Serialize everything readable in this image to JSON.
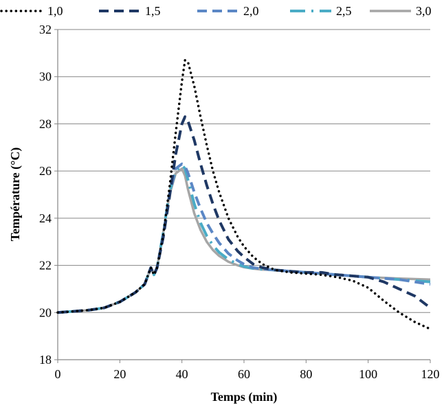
{
  "chart_data": {
    "type": "line",
    "xlabel": "Temps (min)",
    "ylabel": "Température (°C)",
    "xlim": [
      0,
      120
    ],
    "ylim": [
      18,
      32
    ],
    "xticks": [
      0,
      20,
      40,
      60,
      80,
      100,
      120
    ],
    "yticks": [
      18,
      20,
      22,
      24,
      26,
      28,
      30,
      32
    ],
    "grid": "horizontal",
    "legend_position": "top",
    "series": [
      {
        "name": "1,0",
        "color": "#000000",
        "style": "dotted",
        "x": [
          0,
          5,
          10,
          15,
          20,
          25,
          28,
          30,
          31,
          32,
          34,
          36,
          38,
          40,
          41,
          42,
          44,
          46,
          48,
          50,
          52,
          55,
          58,
          60,
          63,
          66,
          70,
          75,
          80,
          85,
          90,
          95,
          100,
          105,
          110,
          115,
          120
        ],
        "y": [
          20.0,
          20.05,
          20.1,
          20.2,
          20.45,
          20.85,
          21.2,
          21.9,
          21.6,
          21.9,
          23.3,
          25.3,
          27.6,
          29.8,
          30.7,
          30.6,
          29.6,
          28.3,
          27.1,
          26.0,
          25.1,
          24.0,
          23.2,
          22.8,
          22.35,
          22.05,
          21.8,
          21.7,
          21.65,
          21.6,
          21.5,
          21.35,
          21.05,
          20.5,
          20.0,
          19.6,
          19.3
        ]
      },
      {
        "name": "1,5",
        "color": "#1f3864",
        "style": "dashed",
        "x": [
          0,
          5,
          10,
          15,
          20,
          25,
          28,
          30,
          31,
          32,
          34,
          36,
          38,
          40,
          41,
          42,
          44,
          46,
          48,
          50,
          52,
          55,
          58,
          60,
          63,
          66,
          70,
          75,
          80,
          85,
          90,
          95,
          100,
          105,
          110,
          115,
          120
        ],
        "y": [
          20.0,
          20.05,
          20.1,
          20.2,
          20.45,
          20.85,
          21.2,
          21.9,
          21.6,
          21.9,
          23.2,
          24.9,
          26.7,
          28.0,
          28.3,
          28.1,
          27.3,
          26.3,
          25.4,
          24.6,
          23.9,
          23.1,
          22.6,
          22.35,
          22.05,
          21.9,
          21.8,
          21.75,
          21.7,
          21.7,
          21.6,
          21.55,
          21.5,
          21.3,
          21.0,
          20.7,
          20.2
        ]
      },
      {
        "name": "2,0",
        "color": "#5b87c5",
        "style": "dashed",
        "x": [
          0,
          5,
          10,
          15,
          20,
          25,
          28,
          30,
          31,
          32,
          34,
          36,
          38,
          40,
          41,
          42,
          44,
          46,
          48,
          50,
          52,
          55,
          58,
          60,
          63,
          66,
          70,
          75,
          80,
          85,
          90,
          95,
          100,
          105,
          110,
          115,
          120
        ],
        "y": [
          20.0,
          20.05,
          20.1,
          20.2,
          20.45,
          20.85,
          21.2,
          21.9,
          21.6,
          21.9,
          23.3,
          25.0,
          26.1,
          26.3,
          26.2,
          25.9,
          25.1,
          24.4,
          23.8,
          23.35,
          22.95,
          22.5,
          22.2,
          22.05,
          21.9,
          21.85,
          21.8,
          21.75,
          21.7,
          21.65,
          21.6,
          21.55,
          21.5,
          21.45,
          21.4,
          21.3,
          21.2
        ]
      },
      {
        "name": "2,5",
        "color": "#4bacc6",
        "style": "dashdot",
        "x": [
          0,
          5,
          10,
          15,
          20,
          25,
          28,
          30,
          31,
          32,
          34,
          36,
          38,
          40,
          41,
          42,
          44,
          46,
          48,
          50,
          52,
          55,
          58,
          60,
          63,
          66,
          70,
          75,
          80,
          85,
          90,
          95,
          100,
          105,
          110,
          115,
          120
        ],
        "y": [
          20.0,
          20.05,
          20.1,
          20.2,
          20.45,
          20.85,
          21.2,
          21.9,
          21.6,
          21.9,
          23.4,
          25.1,
          26.0,
          26.25,
          26.1,
          25.6,
          24.6,
          23.8,
          23.25,
          22.85,
          22.55,
          22.25,
          22.05,
          21.95,
          21.87,
          21.83,
          21.8,
          21.75,
          21.7,
          21.65,
          21.6,
          21.55,
          21.5,
          21.45,
          21.4,
          21.35,
          21.3
        ]
      },
      {
        "name": "3,0",
        "color": "#a6a6a6",
        "style": "solid",
        "x": [
          0,
          5,
          10,
          15,
          20,
          25,
          28,
          30,
          31,
          32,
          34,
          36,
          38,
          40,
          41,
          42,
          44,
          46,
          48,
          50,
          52,
          55,
          58,
          60,
          63,
          66,
          70,
          75,
          80,
          85,
          90,
          95,
          100,
          105,
          110,
          115,
          120
        ],
        "y": [
          20.0,
          20.05,
          20.1,
          20.2,
          20.45,
          20.85,
          21.2,
          21.9,
          21.6,
          21.9,
          23.4,
          25.0,
          25.9,
          26.1,
          25.8,
          25.2,
          24.2,
          23.5,
          23.0,
          22.65,
          22.4,
          22.15,
          22.0,
          21.92,
          21.86,
          21.82,
          21.8,
          21.75,
          21.7,
          21.65,
          21.6,
          21.55,
          21.5,
          21.47,
          21.44,
          21.42,
          21.4
        ]
      }
    ]
  }
}
